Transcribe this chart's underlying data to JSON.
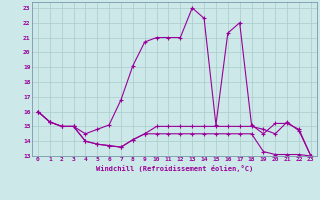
{
  "xlabel": "Windchill (Refroidissement éolien,°C)",
  "xlim": [
    -0.5,
    23.5
  ],
  "ylim": [
    13,
    23.4
  ],
  "yticks": [
    13,
    14,
    15,
    16,
    17,
    18,
    19,
    20,
    21,
    22,
    23
  ],
  "xticks": [
    0,
    1,
    2,
    3,
    4,
    5,
    6,
    7,
    8,
    9,
    10,
    11,
    12,
    13,
    14,
    15,
    16,
    17,
    18,
    19,
    20,
    21,
    22,
    23
  ],
  "background_color": "#cce8e8",
  "grid_color": "#aacccc",
  "line_color": "#990099",
  "series1_x": [
    0,
    1,
    2,
    3,
    4,
    5,
    6,
    7,
    8,
    9,
    10,
    11,
    12,
    13,
    14,
    15,
    16,
    17,
    18,
    19,
    20,
    21,
    22,
    23
  ],
  "series1_y": [
    16.0,
    15.3,
    15.0,
    15.0,
    14.5,
    14.8,
    15.1,
    16.8,
    19.1,
    20.7,
    21.0,
    21.0,
    21.0,
    23.0,
    22.3,
    15.1,
    21.3,
    22.0,
    15.1,
    14.5,
    15.2,
    15.2,
    14.8,
    13.0
  ],
  "series2_x": [
    0,
    1,
    2,
    3,
    4,
    5,
    6,
    7,
    8,
    9,
    10,
    11,
    12,
    13,
    14,
    15,
    16,
    17,
    18,
    19,
    20,
    21,
    22,
    23
  ],
  "series2_y": [
    16.0,
    15.3,
    15.0,
    15.0,
    14.0,
    13.8,
    13.7,
    13.6,
    14.1,
    14.5,
    15.0,
    15.0,
    15.0,
    15.0,
    15.0,
    15.0,
    15.0,
    15.0,
    15.0,
    14.8,
    14.5,
    15.3,
    14.7,
    13.0
  ],
  "series3_x": [
    0,
    1,
    2,
    3,
    4,
    5,
    6,
    7,
    8,
    9,
    10,
    11,
    12,
    13,
    14,
    15,
    16,
    17,
    18,
    19,
    20,
    21,
    22,
    23
  ],
  "series3_y": [
    16.0,
    15.3,
    15.0,
    15.0,
    14.0,
    13.8,
    13.7,
    13.6,
    14.1,
    14.5,
    14.5,
    14.5,
    14.5,
    14.5,
    14.5,
    14.5,
    14.5,
    14.5,
    14.5,
    13.3,
    13.1,
    13.1,
    13.1,
    13.0
  ]
}
